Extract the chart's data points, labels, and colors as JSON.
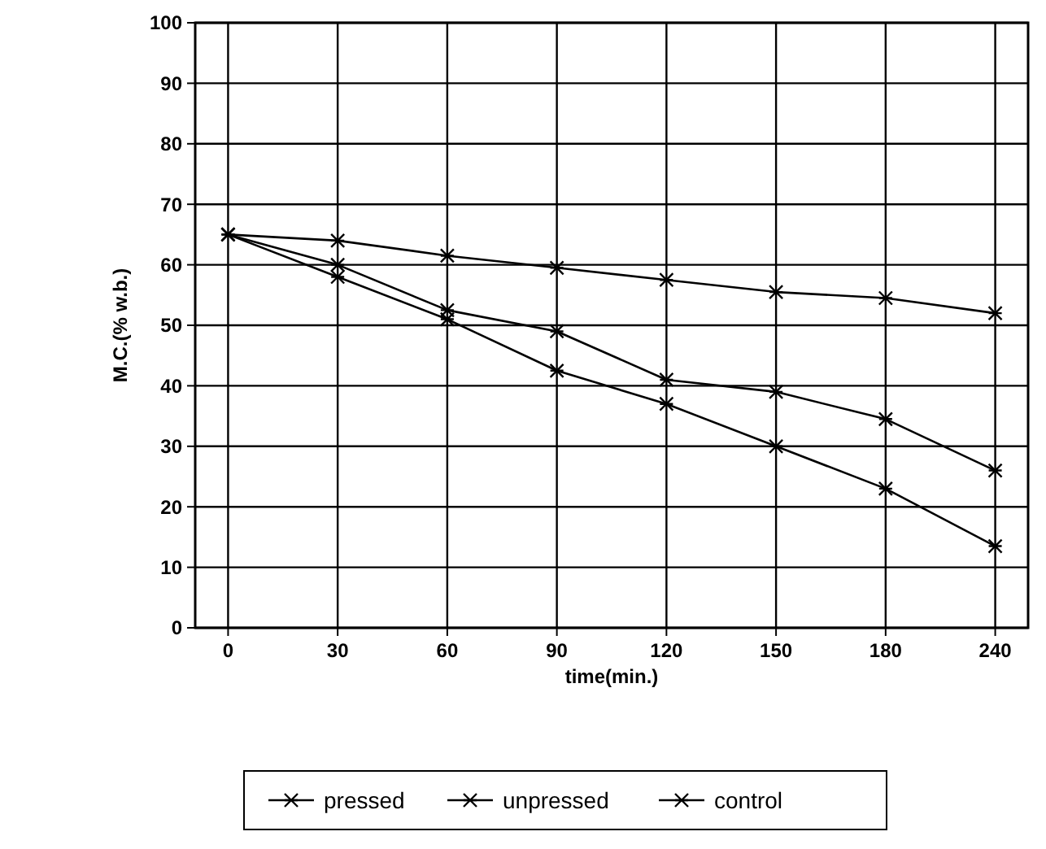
{
  "chart_data": {
    "type": "line",
    "xlabel": "time(min.)",
    "ylabel": "M.C.(% w.b.)",
    "categories": [
      "0",
      "30",
      "60",
      "90",
      "120",
      "150",
      "180",
      "240"
    ],
    "series": [
      {
        "name": "pressed",
        "color": "#000000",
        "values": [
          65,
          58,
          51,
          42.5,
          37,
          30,
          23,
          13.5
        ]
      },
      {
        "name": "unpressed",
        "color": "#000000",
        "values": [
          65,
          60,
          52.5,
          49,
          41,
          39,
          34.5,
          26
        ]
      },
      {
        "name": "control",
        "color": "#000000",
        "values": [
          65,
          64,
          61.5,
          59.5,
          57.5,
          55.5,
          54.5,
          52
        ]
      }
    ],
    "ylim": [
      0,
      100
    ],
    "yticks": [
      0,
      10,
      20,
      30,
      40,
      50,
      60,
      70,
      80,
      90,
      100
    ],
    "grid": true,
    "legend": "bottom",
    "marker": "cross",
    "line_style": "solid"
  }
}
